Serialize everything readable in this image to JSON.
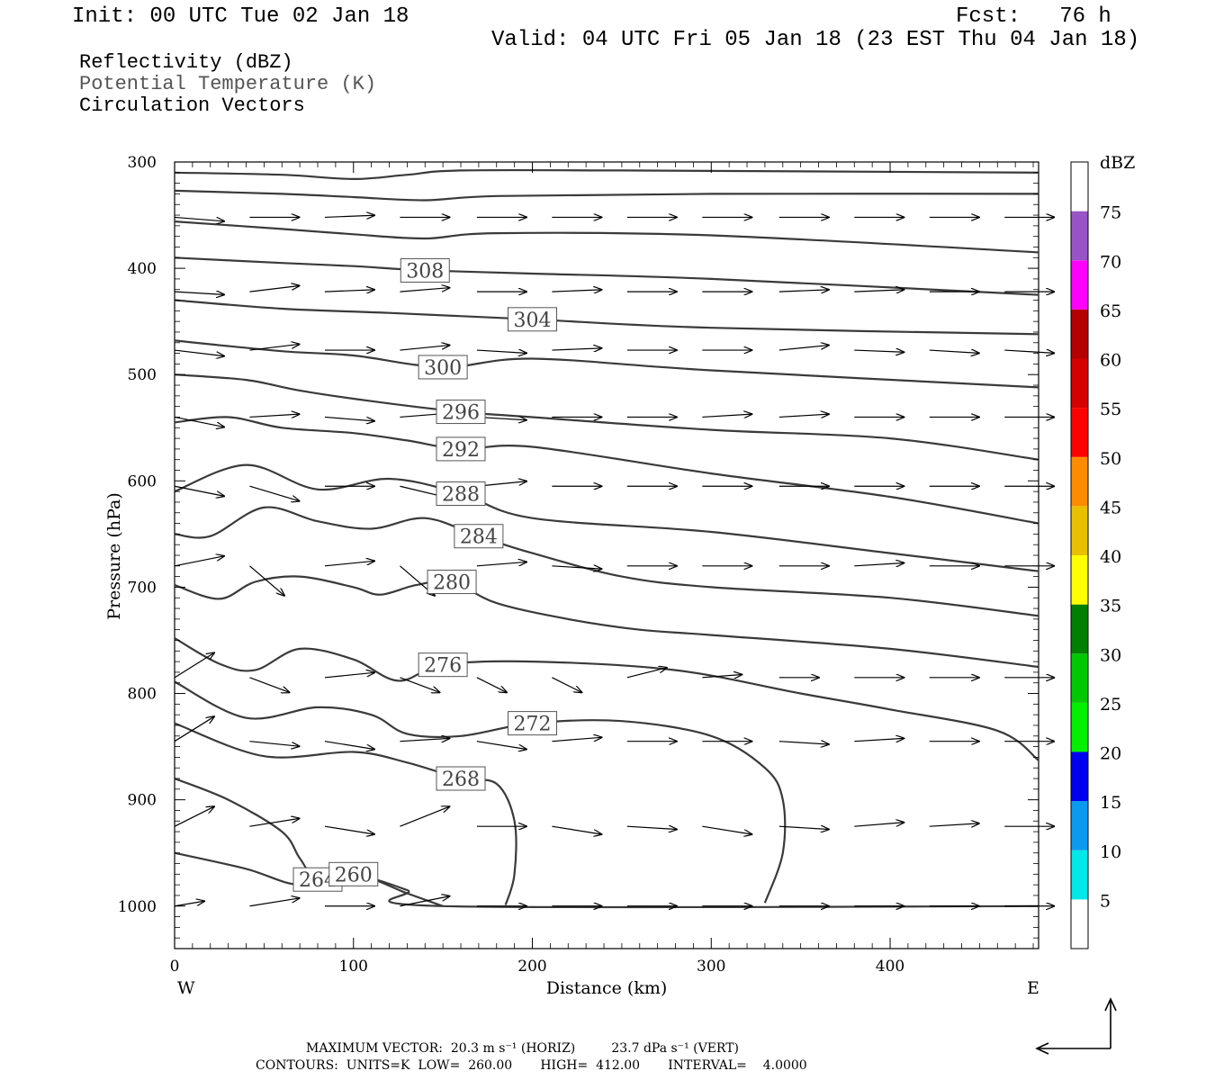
{
  "header": {
    "init": "Init: 00 UTC Tue 02 Jan 18",
    "fcst": "Fcst:   76 h",
    "valid": "Valid: 04 UTC Fri 05 Jan 18 (23 EST Thu 04 Jan 18)",
    "fields": [
      "Reflectivity (dBZ)",
      "Potential Temperature (K)",
      "Circulation Vectors"
    ]
  },
  "footer": {
    "max_vector": "MAXIMUM VECTOR:  20.3 m s⁻¹ (HORIZ)         23.7 dPa s⁻¹ (VERT)",
    "contours": "CONTOURS:  UNITS=K  LOW=  260.00       HIGH=  412.00       INTERVAL=    4.0000"
  },
  "chart_data": {
    "type": "line",
    "xlabel": "Distance (km)",
    "ylabel": "Pressure (hPa)",
    "xlim": [
      0,
      483
    ],
    "ylim": [
      1040,
      300
    ],
    "x_ticks": [
      "0",
      "100",
      "200",
      "300",
      "400"
    ],
    "y_ticks": [
      "300",
      "400",
      "500",
      "600",
      "700",
      "800",
      "900",
      "1000"
    ],
    "x_end_labels": {
      "left": "W",
      "right": "E"
    },
    "colorbar": {
      "unit": "dBZ",
      "levels": [
        "5",
        "10",
        "15",
        "20",
        "25",
        "30",
        "35",
        "40",
        "45",
        "50",
        "55",
        "60",
        "65",
        "70",
        "75"
      ],
      "colors": [
        "#ffffff",
        "#00e8e8",
        "#0a9af0",
        "#0000f0",
        "#00f000",
        "#00c800",
        "#007f00",
        "#ffff00",
        "#e8c000",
        "#ff8c00",
        "#ff0000",
        "#d60000",
        "#b40000",
        "#ff00ff",
        "#9854c6",
        "#ffffff"
      ]
    },
    "series": [
      {
        "label": "",
        "points": [
          [
            0,
            310
          ],
          [
            60,
            312
          ],
          [
            100,
            316
          ],
          [
            130,
            312
          ],
          [
            160,
            308
          ],
          [
            250,
            308
          ],
          [
            483,
            310
          ]
        ]
      },
      {
        "label": "",
        "points": [
          [
            0,
            327
          ],
          [
            60,
            330
          ],
          [
            100,
            333
          ],
          [
            140,
            336
          ],
          [
            180,
            332
          ],
          [
            300,
            330
          ],
          [
            483,
            330
          ]
        ]
      },
      {
        "label": "",
        "points": [
          [
            0,
            356
          ],
          [
            60,
            363
          ],
          [
            100,
            368
          ],
          [
            140,
            372
          ],
          [
            180,
            367
          ],
          [
            300,
            369
          ],
          [
            483,
            385
          ]
        ]
      },
      {
        "label": "308",
        "points": [
          [
            0,
            390
          ],
          [
            60,
            395
          ],
          [
            100,
            398
          ],
          [
            140,
            402
          ],
          [
            200,
            405
          ],
          [
            300,
            410
          ],
          [
            483,
            425
          ]
        ]
      },
      {
        "label": "304",
        "points": [
          [
            0,
            430
          ],
          [
            60,
            438
          ],
          [
            120,
            442
          ],
          [
            200,
            448
          ],
          [
            300,
            456
          ],
          [
            483,
            462
          ]
        ]
      },
      {
        "label": "300",
        "points": [
          [
            0,
            468
          ],
          [
            60,
            478
          ],
          [
            100,
            482
          ],
          [
            150,
            493
          ],
          [
            200,
            485
          ],
          [
            300,
            496
          ],
          [
            483,
            512
          ]
        ]
      },
      {
        "label": "296",
        "points": [
          [
            0,
            500
          ],
          [
            40,
            505
          ],
          [
            70,
            515
          ],
          [
            110,
            525
          ],
          [
            160,
            535
          ],
          [
            200,
            540
          ],
          [
            300,
            552
          ],
          [
            400,
            560
          ],
          [
            483,
            580
          ]
        ]
      },
      {
        "label": "292",
        "points": [
          [
            0,
            545
          ],
          [
            30,
            540
          ],
          [
            60,
            550
          ],
          [
            100,
            555
          ],
          [
            130,
            562
          ],
          [
            160,
            570
          ],
          [
            200,
            568
          ],
          [
            300,
            593
          ],
          [
            400,
            615
          ],
          [
            483,
            640
          ]
        ]
      },
      {
        "label": "288",
        "points": [
          [
            0,
            610
          ],
          [
            40,
            585
          ],
          [
            80,
            608
          ],
          [
            120,
            598
          ],
          [
            160,
            612
          ],
          [
            200,
            635
          ],
          [
            300,
            648
          ],
          [
            400,
            668
          ],
          [
            483,
            685
          ]
        ]
      },
      {
        "label": "284",
        "points": [
          [
            0,
            650
          ],
          [
            20,
            652
          ],
          [
            50,
            625
          ],
          [
            80,
            638
          ],
          [
            110,
            645
          ],
          [
            140,
            635
          ],
          [
            170,
            652
          ],
          [
            200,
            668
          ],
          [
            250,
            690
          ],
          [
            300,
            700
          ],
          [
            400,
            710
          ],
          [
            483,
            727
          ]
        ]
      },
      {
        "label": "280",
        "points": [
          [
            0,
            698
          ],
          [
            25,
            711
          ],
          [
            45,
            695
          ],
          [
            70,
            690
          ],
          [
            100,
            700
          ],
          [
            115,
            707
          ],
          [
            135,
            698
          ],
          [
            155,
            695
          ],
          [
            180,
            715
          ],
          [
            220,
            730
          ],
          [
            260,
            740
          ],
          [
            300,
            745
          ],
          [
            400,
            758
          ],
          [
            483,
            775
          ]
        ]
      },
      {
        "label": "276",
        "points": [
          [
            0,
            748
          ],
          [
            25,
            772
          ],
          [
            45,
            778
          ],
          [
            70,
            758
          ],
          [
            100,
            768
          ],
          [
            125,
            788
          ],
          [
            150,
            773
          ],
          [
            200,
            770
          ],
          [
            280,
            778
          ],
          [
            350,
            800
          ],
          [
            400,
            815
          ],
          [
            460,
            835
          ],
          [
            483,
            863
          ]
        ]
      },
      {
        "label": "272",
        "points": [
          [
            0,
            789
          ],
          [
            40,
            823
          ],
          [
            80,
            813
          ],
          [
            110,
            820
          ],
          [
            130,
            838
          ],
          [
            160,
            840
          ],
          [
            200,
            828
          ],
          [
            250,
            826
          ],
          [
            300,
            840
          ],
          [
            330,
            870
          ],
          [
            340,
            900
          ],
          [
            340,
            950
          ],
          [
            330,
            997
          ]
        ]
      },
      {
        "label": "268",
        "points": [
          [
            0,
            828
          ],
          [
            50,
            859
          ],
          [
            100,
            855
          ],
          [
            130,
            865
          ],
          [
            160,
            880
          ],
          [
            180,
            885
          ],
          [
            190,
            920
          ],
          [
            190,
            970
          ],
          [
            185,
            999
          ]
        ]
      },
      {
        "label": "264",
        "points": [
          [
            0,
            880
          ],
          [
            30,
            900
          ],
          [
            60,
            930
          ],
          [
            70,
            955
          ],
          [
            80,
            975
          ],
          [
            100,
            970
          ],
          [
            130,
            985
          ],
          [
            150,
            1000
          ],
          [
            483,
            1000
          ]
        ]
      },
      {
        "label": "260",
        "points": [
          [
            0,
            950
          ],
          [
            40,
            965
          ],
          [
            70,
            980
          ],
          [
            100,
            970
          ],
          [
            130,
            988
          ],
          [
            150,
            1000
          ]
        ]
      }
    ],
    "vector_rows": [
      {
        "p": 352,
        "x": [
          0,
          42,
          84,
          126,
          169,
          211,
          253,
          295,
          338,
          380,
          422,
          464
        ],
        "u": [
          5,
          5,
          5,
          5,
          5,
          5,
          5,
          5,
          5,
          5,
          5,
          5
        ],
        "w": [
          -0.4,
          0,
          0.2,
          0,
          0,
          0,
          0,
          0,
          0,
          0,
          0,
          0
        ]
      },
      {
        "p": 422,
        "x": [
          0,
          42,
          84,
          126,
          169,
          211,
          253,
          295,
          338,
          380,
          422,
          464
        ],
        "u": [
          5,
          5,
          5,
          5,
          5,
          5,
          5,
          5,
          5,
          5,
          5,
          5
        ],
        "w": [
          -0.3,
          0.6,
          0.2,
          0.4,
          0,
          0.2,
          0,
          0,
          0.2,
          0.2,
          0,
          0
        ]
      },
      {
        "p": 477,
        "x": [
          0,
          42,
          84,
          126,
          169,
          211,
          253,
          295,
          338,
          380,
          422,
          464
        ],
        "u": [
          5,
          5,
          5,
          5,
          5,
          5,
          5,
          5,
          5,
          5,
          5,
          5
        ],
        "w": [
          -0.6,
          0.6,
          0,
          0.5,
          -0.3,
          0.2,
          0,
          0,
          0.5,
          -0.2,
          -0.3,
          -0.3
        ]
      },
      {
        "p": 540,
        "x": [
          0,
          42,
          84,
          126,
          169,
          211,
          253,
          295,
          338,
          380,
          422,
          464
        ],
        "u": [
          5,
          5,
          5,
          5,
          5,
          5,
          5,
          5,
          5,
          5,
          5,
          5
        ],
        "w": [
          -1.0,
          0.3,
          -0.4,
          0.4,
          -0.3,
          0,
          0,
          0.3,
          0.3,
          0,
          0,
          0
        ]
      },
      {
        "p": 605,
        "x": [
          0,
          42,
          84,
          126,
          169,
          211,
          253,
          295,
          338,
          380,
          422,
          464
        ],
        "u": [
          5,
          5,
          5,
          5,
          5,
          5,
          5,
          5,
          5,
          5,
          5,
          5
        ],
        "w": [
          -1.0,
          -1.5,
          0,
          -1.2,
          0.5,
          0,
          0,
          0,
          0,
          0,
          0,
          0
        ]
      },
      {
        "p": 680,
        "x": [
          0,
          42,
          84,
          126,
          169,
          211,
          253,
          295,
          338,
          380,
          422,
          464
        ],
        "u": [
          5,
          3.5,
          5,
          3.5,
          5,
          5,
          5,
          5,
          5,
          5,
          5,
          5
        ],
        "w": [
          1.0,
          -3.0,
          0.5,
          -3.0,
          0.4,
          -0.3,
          0,
          0,
          0,
          0.3,
          0,
          0
        ]
      },
      {
        "p": 785,
        "x": [
          0,
          42,
          84,
          126,
          169,
          211,
          253,
          295,
          338,
          380,
          422,
          464
        ],
        "u": [
          4,
          4,
          5,
          4,
          3,
          3,
          4,
          4,
          4,
          5,
          5,
          5
        ],
        "w": [
          2.5,
          -1.5,
          0.5,
          -1.5,
          -1.5,
          -1.5,
          1.0,
          0.3,
          0,
          0,
          0,
          0
        ]
      },
      {
        "p": 845,
        "x": [
          0,
          42,
          84,
          126,
          169,
          211,
          253,
          295,
          338,
          380,
          422,
          464
        ],
        "u": [
          4,
          5,
          5,
          5,
          5,
          5,
          5,
          5,
          5,
          5,
          5,
          5
        ],
        "w": [
          2.5,
          -0.5,
          -0.8,
          0.3,
          -0.8,
          0.4,
          0,
          0,
          -0.3,
          0.3,
          0,
          0
        ]
      },
      {
        "p": 925,
        "x": [
          0,
          42,
          84,
          126,
          169,
          211,
          253,
          295,
          338,
          380,
          422,
          464
        ],
        "u": [
          4,
          5,
          5,
          5,
          5,
          5,
          5,
          5,
          5,
          5,
          5,
          5
        ],
        "w": [
          2.0,
          0.8,
          -0.8,
          2.0,
          0,
          -0.8,
          -0.3,
          -0.8,
          -0.3,
          0.4,
          0.3,
          0
        ]
      },
      {
        "p": 1000,
        "x": [
          0,
          42,
          84,
          126,
          169,
          211,
          253,
          295,
          338,
          380,
          422,
          464
        ],
        "u": [
          3,
          5,
          5,
          5,
          5,
          5,
          5,
          5,
          5,
          5,
          5,
          5
        ],
        "w": [
          0.5,
          0.8,
          0,
          1.0,
          0,
          0,
          0,
          0,
          0,
          0,
          0,
          0
        ]
      }
    ]
  }
}
